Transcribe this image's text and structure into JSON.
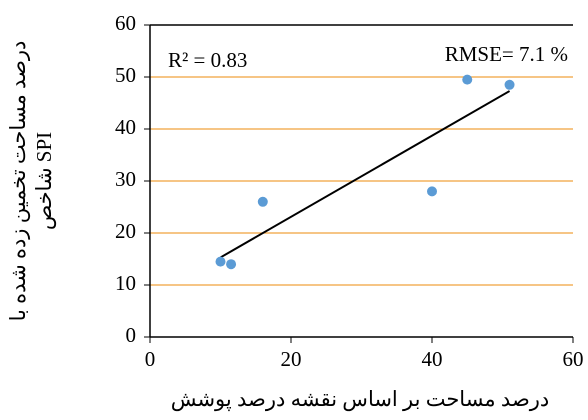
{
  "chart_data": {
    "type": "scatter",
    "x_label": "درصد مساحت بر اساس نقشه درصد پوشش",
    "y_label": [
      "درصد مساحت تخمین زده شده با",
      "شاخص SPI"
    ],
    "annotations": [
      "R² = 0.83",
      "RMSE= 7.1 %"
    ],
    "series": [
      {
        "color": "#5b9bd5",
        "x": [
          10,
          11.5,
          16,
          40,
          45,
          51
        ],
        "values": [
          14.5,
          14,
          26,
          28,
          49.5,
          48.5
        ]
      }
    ],
    "trendline": {
      "color": "#000000",
      "x": [
        10,
        51
      ],
      "values": [
        15.3,
        47.3
      ]
    },
    "xlim": [
      0,
      60
    ],
    "xticks": [
      0,
      20,
      40,
      60
    ],
    "ylim": [
      0,
      60
    ],
    "yticks": [
      0,
      10,
      20,
      30,
      40,
      50,
      60
    ],
    "grid": true,
    "grid_color": "#f0a23c"
  }
}
